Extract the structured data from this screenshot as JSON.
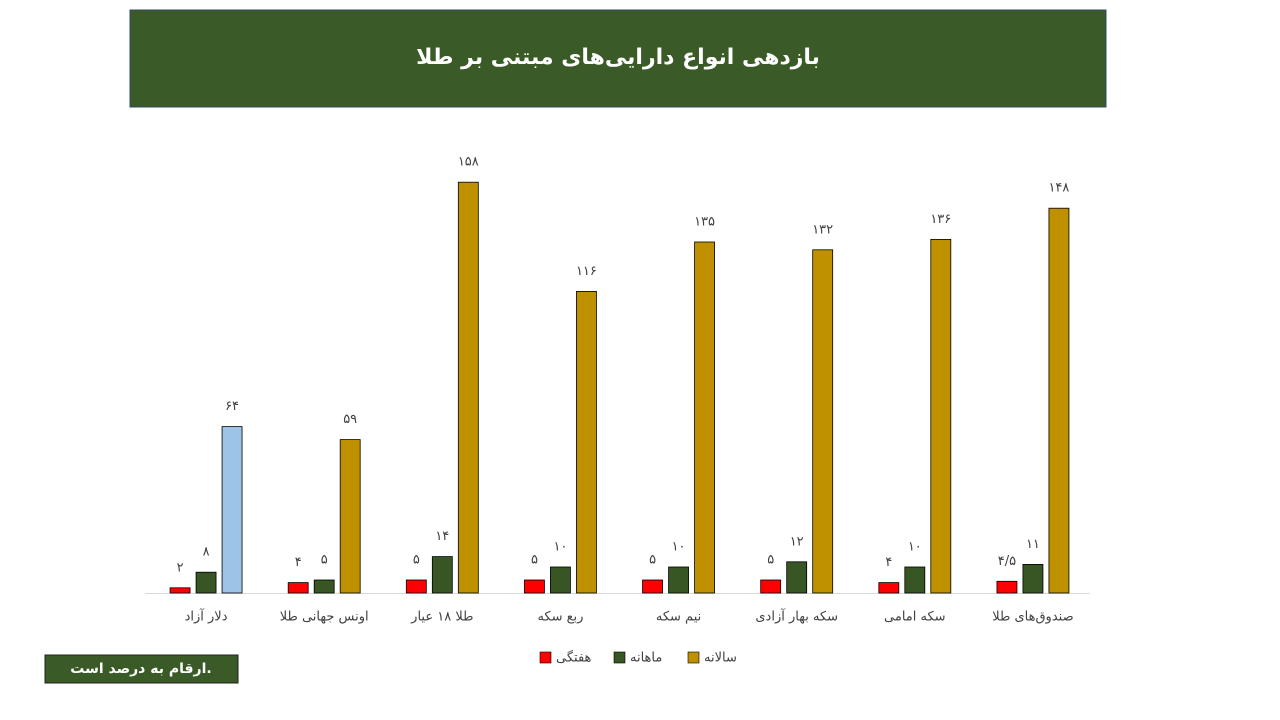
{
  "chart_data": {
    "type": "bar",
    "title": "بازدهی انواع دارایی‌های مبتنی بر طلا",
    "annotation": "ارقام به درصد است.",
    "categories": [
      "دلار آزاد",
      "اونس جهانی طلا",
      "طلا ۱۸ عیار",
      "ربع سکه",
      "نیم سکه",
      "سکه بهار آزادی",
      "سکه امامی",
      "صندوق‌های طلا"
    ],
    "series": [
      {
        "name": "هفتگی",
        "color": "#ff0000",
        "values": [
          2,
          4,
          5,
          5,
          5,
          5,
          4,
          4.5
        ],
        "value_labels": [
          "۲",
          "۴",
          "۵",
          "۵",
          "۵",
          "۵",
          "۴",
          "۴/۵"
        ]
      },
      {
        "name": "ماهانه",
        "color": "#375623",
        "values": [
          8,
          5,
          14,
          10,
          10,
          12,
          10,
          11
        ],
        "value_labels": [
          "۸",
          "۵",
          "۱۴",
          "۱۰",
          "۱۰",
          "۱۲",
          "۱۰",
          "۱۱"
        ]
      },
      {
        "name": "سالانه",
        "color": "#bf9000",
        "colors": [
          "#9dc3e6",
          "#bf9000",
          "#bf9000",
          "#bf9000",
          "#bf9000",
          "#bf9000",
          "#bf9000",
          "#bf9000"
        ],
        "values": [
          64,
          59,
          158,
          116,
          135,
          132,
          136,
          148
        ],
        "value_labels": [
          "۶۴",
          "۵۹",
          "۱۵۸",
          "۱۱۶",
          "۱۳۵",
          "۱۳۲",
          "۱۳۶",
          "۱۴۸"
        ]
      }
    ],
    "ylim": [
      0,
      160
    ]
  }
}
